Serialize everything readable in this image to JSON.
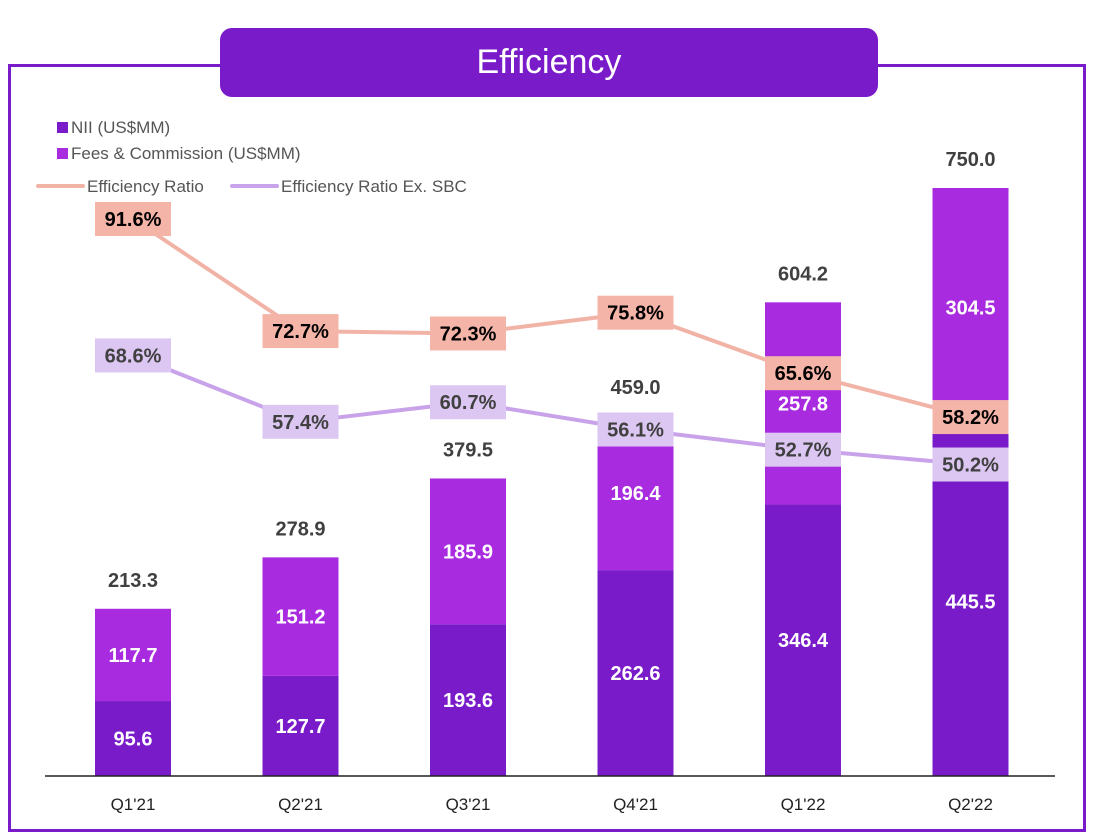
{
  "title": "Efficiency",
  "colors": {
    "frame": "#7A1BC9",
    "nii": "#7A1BC9",
    "fees": "#A92BE0",
    "ratio": "#F2B3A7",
    "ratio_label_bg": "#F4B4A8",
    "ratio_ex_sbc": "#C9A3EA",
    "ratio_ex_sbc_label_bg": "#DCC6F2"
  },
  "chart_data": {
    "type": "bar",
    "stacked": true,
    "categories": [
      "Q1'21",
      "Q2'21",
      "Q3'21",
      "Q4'21",
      "Q1'22",
      "Q2'22"
    ],
    "series": [
      {
        "name": "NII (US$MM)",
        "type": "bar",
        "values": [
          95.6,
          127.7,
          193.6,
          262.6,
          346.4,
          445.5
        ]
      },
      {
        "name": "Fees & Commission (US$MM)",
        "type": "bar",
        "values": [
          117.7,
          151.2,
          185.9,
          196.4,
          257.8,
          304.5
        ]
      },
      {
        "name": "Efficiency Ratio",
        "type": "line",
        "values": [
          91.6,
          72.7,
          72.3,
          75.8,
          65.6,
          58.2
        ]
      },
      {
        "name": "Efficiency Ratio Ex. SBC",
        "type": "line",
        "values": [
          68.6,
          57.4,
          60.7,
          56.1,
          52.7,
          50.2
        ]
      }
    ],
    "totals": [
      213.3,
      278.9,
      379.5,
      459.0,
      604.2,
      750.0
    ],
    "total_labels": [
      "213.3",
      "278.9",
      "379.5",
      "459.0",
      "604.2",
      "750.0"
    ],
    "nii_labels": [
      "95.6",
      "127.7",
      "193.6",
      "262.6",
      "346.4",
      "445.5"
    ],
    "fees_labels": [
      "117.7",
      "151.2",
      "185.9",
      "196.4",
      "257.8",
      "304.5"
    ],
    "ratio_labels": [
      "91.6%",
      "72.7%",
      "72.3%",
      "75.8%",
      "65.6%",
      "58.2%"
    ],
    "ratio_ex_sbc_labels": [
      "68.6%",
      "57.4%",
      "60.7%",
      "56.1%",
      "52.7%",
      "50.2%"
    ],
    "grid": false,
    "legend": "top-left"
  }
}
